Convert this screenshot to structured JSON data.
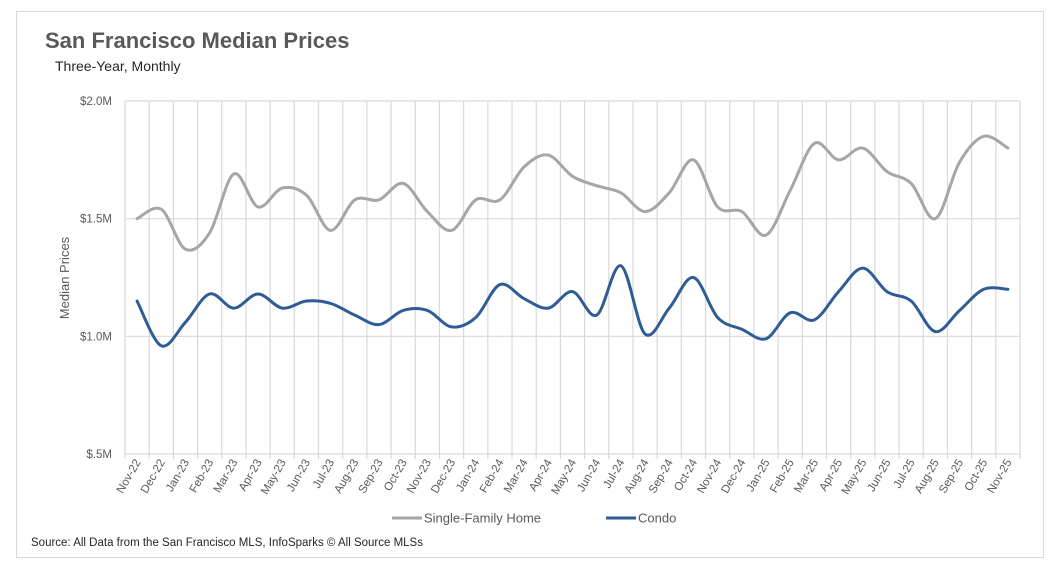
{
  "title": "San Francisco Median Prices",
  "subtitle": "Three-Year, Monthly",
  "source": "Source: All Data from the San Francisco MLS, InfoSparks © All Source MLSs",
  "colors": {
    "single_family": "#a6a6a6",
    "condo": "#2f5c97",
    "grid": "#d9d9d9",
    "text": "#595959"
  },
  "chart_data": {
    "type": "line",
    "title": "San Francisco Median Prices",
    "subtitle": "Three-Year, Monthly",
    "xlabel": "",
    "ylabel": "Median Prices",
    "ylim": [
      0.5,
      2.0
    ],
    "y_unit": "$M",
    "yticks": [
      0.5,
      1.0,
      1.5,
      2.0
    ],
    "ytick_labels": [
      "$.5M",
      "$1.0M",
      "$1.5M",
      "$2.0M"
    ],
    "grid": true,
    "smooth": true,
    "legend_position": "bottom",
    "categories": [
      "Nov-22",
      "Dec-22",
      "Jan-23",
      "Feb-23",
      "Mar-23",
      "Apr-23",
      "May-23",
      "Jun-23",
      "Jul-23",
      "Aug-23",
      "Sep-23",
      "Oct-23",
      "Nov-23",
      "Dec-23",
      "Jan-24",
      "Feb-24",
      "Mar-24",
      "Apr-24",
      "May-24",
      "Jun-24",
      "Jul-24",
      "Aug-24",
      "Sep-24",
      "Oct-24",
      "Nov-24",
      "Dec-24",
      "Jan-25",
      "Feb-25",
      "Mar-25",
      "Apr-25",
      "May-25",
      "Jun-25",
      "Jul-25",
      "Aug-25",
      "Sep-25",
      "Oct-25",
      "Nov-25"
    ],
    "series": [
      {
        "name": "Single-Family Home",
        "color": "#a6a6a6",
        "values": [
          1.5,
          1.54,
          1.37,
          1.44,
          1.69,
          1.55,
          1.63,
          1.6,
          1.45,
          1.58,
          1.58,
          1.65,
          1.53,
          1.45,
          1.58,
          1.58,
          1.72,
          1.77,
          1.68,
          1.64,
          1.61,
          1.53,
          1.61,
          1.75,
          1.55,
          1.53,
          1.43,
          1.62,
          1.82,
          1.75,
          1.8,
          1.7,
          1.65,
          1.5,
          1.74,
          1.85,
          1.8
        ]
      },
      {
        "name": "Condo",
        "color": "#2f5c97",
        "values": [
          1.15,
          0.96,
          1.06,
          1.18,
          1.12,
          1.18,
          1.12,
          1.15,
          1.14,
          1.09,
          1.05,
          1.11,
          1.11,
          1.04,
          1.08,
          1.22,
          1.16,
          1.12,
          1.19,
          1.09,
          1.3,
          1.01,
          1.12,
          1.25,
          1.08,
          1.03,
          0.99,
          1.1,
          1.07,
          1.19,
          1.29,
          1.19,
          1.15,
          1.02,
          1.11,
          1.2,
          1.2
        ]
      }
    ]
  }
}
